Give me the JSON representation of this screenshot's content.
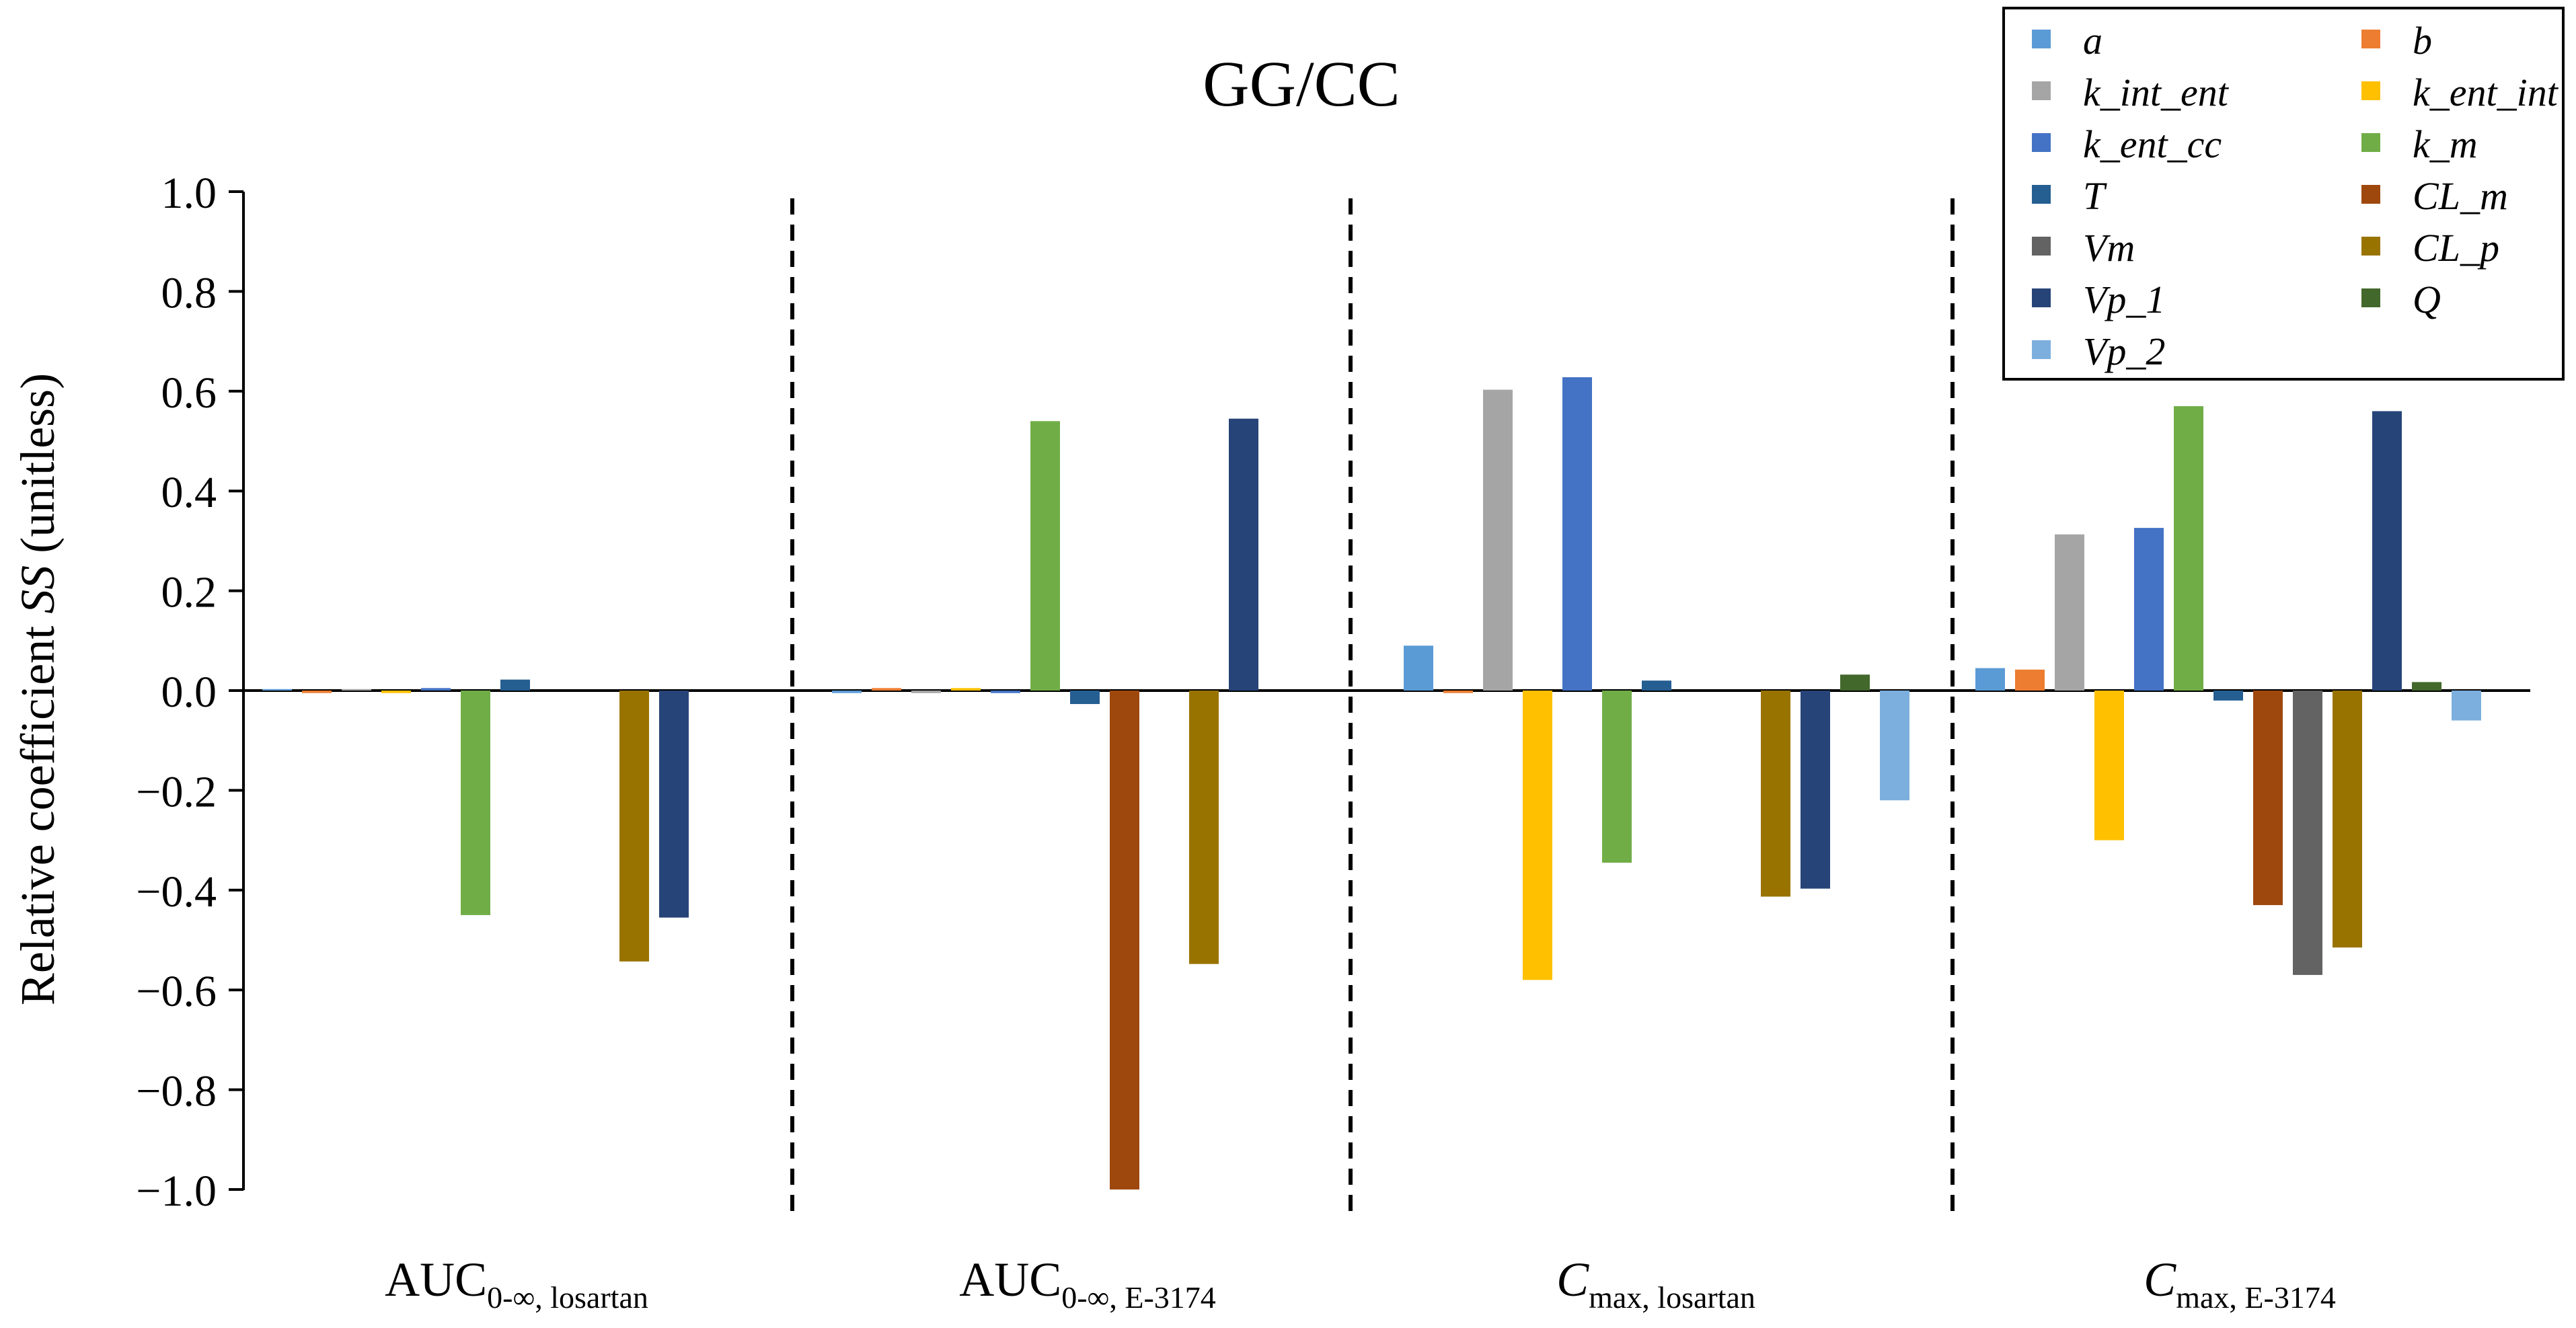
{
  "chart_data": {
    "type": "bar",
    "title": "GG/CC",
    "ylabel_main": "Relative coefficient ",
    "ylabel_italic": "SS",
    "ylabel_tail": " (unitless)",
    "ylim": [
      -1.0,
      1.0
    ],
    "yticks": [
      "1.0",
      "0.8",
      "0.6",
      "0.4",
      "0.2",
      "0.0",
      "−0.2",
      "−0.4",
      "−0.6",
      "−0.8",
      "−1.0"
    ],
    "ytick_values": [
      1.0,
      0.8,
      0.6,
      0.4,
      0.2,
      0.0,
      -0.2,
      -0.4,
      -0.6,
      -0.8,
      -1.0
    ],
    "grid": false,
    "legend_position": "top-right",
    "categories": [
      {
        "main": "AUC",
        "sub": "0-∞, losartan",
        "italic": false
      },
      {
        "main": "AUC",
        "sub": "0-∞, E-3174",
        "italic": false
      },
      {
        "main": "C",
        "sub": "max, losartan",
        "italic": true
      },
      {
        "main": "C",
        "sub": "max, E-3174",
        "italic": true
      }
    ],
    "series": [
      {
        "name": "a",
        "color": "#5B9BD5",
        "values": [
          0.003,
          -0.005,
          0.09,
          0.045
        ]
      },
      {
        "name": "b",
        "color": "#ED7D31",
        "values": [
          -0.005,
          0.005,
          -0.005,
          0.042
        ]
      },
      {
        "name": "k_int_ent",
        "color": "#A5A5A5",
        "values": [
          0.003,
          -0.005,
          0.603,
          0.313
        ]
      },
      {
        "name": "k_ent_int",
        "color": "#FFC000",
        "values": [
          -0.005,
          0.005,
          -0.58,
          -0.3
        ]
      },
      {
        "name": "k_ent_cc",
        "color": "#4472C4",
        "values": [
          0.005,
          -0.005,
          0.628,
          0.326
        ]
      },
      {
        "name": "k_m",
        "color": "#70AD47",
        "values": [
          -0.45,
          0.54,
          -0.345,
          0.57
        ]
      },
      {
        "name": "T",
        "color": "#255E91",
        "values": [
          0.022,
          -0.027,
          0.02,
          -0.02
        ]
      },
      {
        "name": "CL_m",
        "color": "#9E480E",
        "values": [
          0.0,
          -1.0,
          0.0,
          -0.43
        ]
      },
      {
        "name": "Vm",
        "color": "#636363",
        "values": [
          0.0,
          0.0,
          0.0,
          -0.57
        ]
      },
      {
        "name": "CL_p",
        "color": "#997300",
        "values": [
          -0.543,
          -0.548,
          -0.413,
          -0.515
        ]
      },
      {
        "name": "Vp_1",
        "color": "#264478",
        "values": [
          -0.455,
          0.545,
          -0.397,
          0.56
        ]
      },
      {
        "name": "Q",
        "color": "#43682B",
        "values": [
          0.0,
          0.0,
          0.032,
          0.017
        ]
      },
      {
        "name": "Vp_2",
        "color": "#7CAFDD",
        "values": [
          0.0,
          0.0,
          -0.22,
          -0.06
        ]
      }
    ]
  }
}
